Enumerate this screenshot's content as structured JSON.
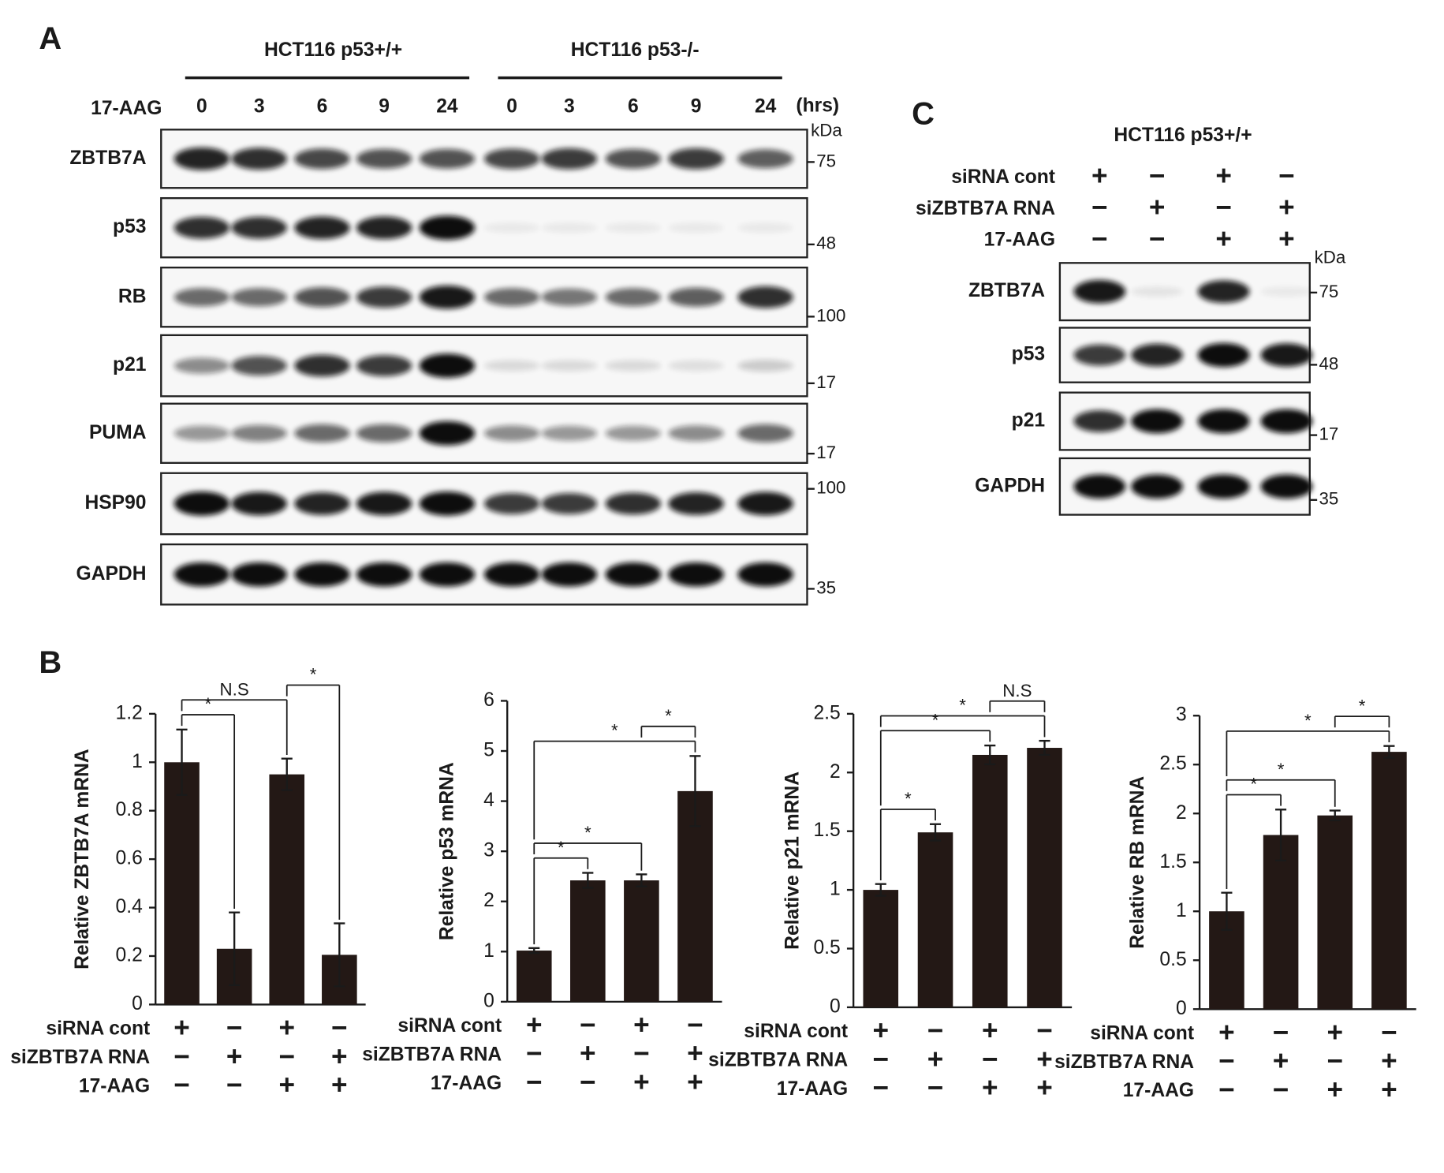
{
  "panel_labels": [
    "A",
    "B",
    "C"
  ],
  "panel_a": {
    "groups": [
      "HCT116 p53+/+",
      "HCT116 p53-/-"
    ],
    "treatment": "17-AAG",
    "times": [
      "0",
      "3",
      "6",
      "9",
      "24",
      "0",
      "3",
      "6",
      "9",
      "24"
    ],
    "time_unit": "(hrs)",
    "kda": "kDa",
    "rows": [
      {
        "label": "ZBTB7A",
        "marker": "75"
      },
      {
        "label": "p53",
        "marker": "48"
      },
      {
        "label": "RB",
        "marker": "100"
      },
      {
        "label": "p21",
        "marker": "17"
      },
      {
        "label": "PUMA",
        "marker": "17"
      },
      {
        "label": "HSP90",
        "marker": "100"
      },
      {
        "label": "GAPDH",
        "marker": "35"
      }
    ]
  },
  "panel_c": {
    "title": "HCT116 p53+/+",
    "conditions": [
      {
        "label": "siRNA cont",
        "signs": [
          "+",
          "−",
          "+",
          "−"
        ]
      },
      {
        "label": "siZBTB7A RNA",
        "signs": [
          "−",
          "+",
          "−",
          "+"
        ]
      },
      {
        "label": "17-AAG",
        "signs": [
          "−",
          "−",
          "+",
          "+"
        ]
      }
    ],
    "kda": "kDa",
    "rows": [
      {
        "label": "ZBTB7A",
        "marker": "75"
      },
      {
        "label": "p53",
        "marker": "48"
      },
      {
        "label": "p21",
        "marker": "17"
      },
      {
        "label": "GAPDH",
        "marker": "35"
      }
    ]
  },
  "chart_data": [
    {
      "type": "bar",
      "ylabel": "Relative ZBTB7A mRNA",
      "color": "#231815",
      "categories": [
        null,
        null,
        null,
        null
      ],
      "values": [
        1.0,
        0.23,
        0.95,
        0.205
      ],
      "errors": [
        0.135,
        0.15,
        0.065,
        0.13
      ],
      "ylim": [
        0,
        1.2
      ],
      "yticks": [
        0,
        0.2,
        0.4,
        0.6,
        0.8,
        1,
        1.2
      ],
      "conditions": [
        {
          "label": "siRNA cont",
          "signs": [
            "+",
            "−",
            "+",
            "−"
          ]
        },
        {
          "label": "siZBTB7A RNA",
          "signs": [
            "−",
            "+",
            "−",
            "+"
          ]
        },
        {
          "label": "17-AAG",
          "signs": [
            "−",
            "−",
            "+",
            "+"
          ]
        }
      ],
      "brackets": [
        {
          "from": 0,
          "to": 1,
          "label": "*"
        },
        {
          "from": 0,
          "to": 2,
          "label": "N.S"
        },
        {
          "from": 2,
          "to": 3,
          "label": "*"
        }
      ]
    },
    {
      "type": "bar",
      "ylabel": "Relative p53  mRNA",
      "color": "#231815",
      "categories": [
        null,
        null,
        null,
        null
      ],
      "values": [
        1.02,
        2.42,
        2.42,
        4.2
      ],
      "errors": [
        0.05,
        0.15,
        0.12,
        0.7
      ],
      "ylim": [
        0,
        6
      ],
      "yticks": [
        0,
        1,
        2,
        3,
        4,
        5,
        6
      ],
      "conditions": [
        {
          "label": "siRNA cont",
          "signs": [
            "+",
            "−",
            "+",
            "−"
          ]
        },
        {
          "label": "siZBTB7A RNA",
          "signs": [
            "−",
            "+",
            "−",
            "+"
          ]
        },
        {
          "label": "17-AAG",
          "signs": [
            "−",
            "−",
            "+",
            "+"
          ]
        }
      ],
      "brackets": [
        {
          "from": 0,
          "to": 1,
          "label": "*"
        },
        {
          "from": 0,
          "to": 2,
          "label": "*"
        },
        {
          "from": 0,
          "to": 3,
          "label": "*"
        },
        {
          "from": 2,
          "to": 3,
          "label": "*"
        }
      ]
    },
    {
      "type": "bar",
      "ylabel": "Relative p21 mRNA",
      "color": "#231815",
      "categories": [
        null,
        null,
        null,
        null
      ],
      "values": [
        1.0,
        1.49,
        2.15,
        2.21
      ],
      "errors": [
        0.05,
        0.07,
        0.08,
        0.06
      ],
      "ylim": [
        0,
        2.5
      ],
      "yticks": [
        0,
        0.5,
        1,
        1.5,
        2,
        2.5
      ],
      "conditions": [
        {
          "label": "siRNA cont",
          "signs": [
            "+",
            "−",
            "+",
            "−"
          ]
        },
        {
          "label": "siZBTB7A RNA",
          "signs": [
            "−",
            "+",
            "−",
            "+"
          ]
        },
        {
          "label": "17-AAG",
          "signs": [
            "−",
            "−",
            "+",
            "+"
          ]
        }
      ],
      "brackets": [
        {
          "from": 0,
          "to": 1,
          "label": "*"
        },
        {
          "from": 0,
          "to": 2,
          "label": "*"
        },
        {
          "from": 0,
          "to": 3,
          "label": "*"
        },
        {
          "from": 2,
          "to": 3,
          "label": "N.S"
        }
      ]
    },
    {
      "type": "bar",
      "ylabel": "Relative RB mRNA",
      "color": "#231815",
      "categories": [
        null,
        null,
        null,
        null
      ],
      "values": [
        1.0,
        1.78,
        1.98,
        2.63
      ],
      "errors": [
        0.19,
        0.26,
        0.05,
        0.06
      ],
      "ylim": [
        0,
        3
      ],
      "yticks": [
        0,
        0.5,
        1,
        1.5,
        2,
        2.5,
        3
      ],
      "conditions": [
        {
          "label": "siRNA cont",
          "signs": [
            "+",
            "−",
            "+",
            "−"
          ]
        },
        {
          "label": "siZBTB7A RNA",
          "signs": [
            "−",
            "+",
            "−",
            "+"
          ]
        },
        {
          "label": "17-AAG",
          "signs": [
            "−",
            "−",
            "+",
            "+"
          ]
        }
      ],
      "brackets": [
        {
          "from": 0,
          "to": 1,
          "label": "*"
        },
        {
          "from": 0,
          "to": 2,
          "label": "*"
        },
        {
          "from": 0,
          "to": 3,
          "label": "*"
        },
        {
          "from": 2,
          "to": 3,
          "label": "*"
        }
      ]
    }
  ]
}
